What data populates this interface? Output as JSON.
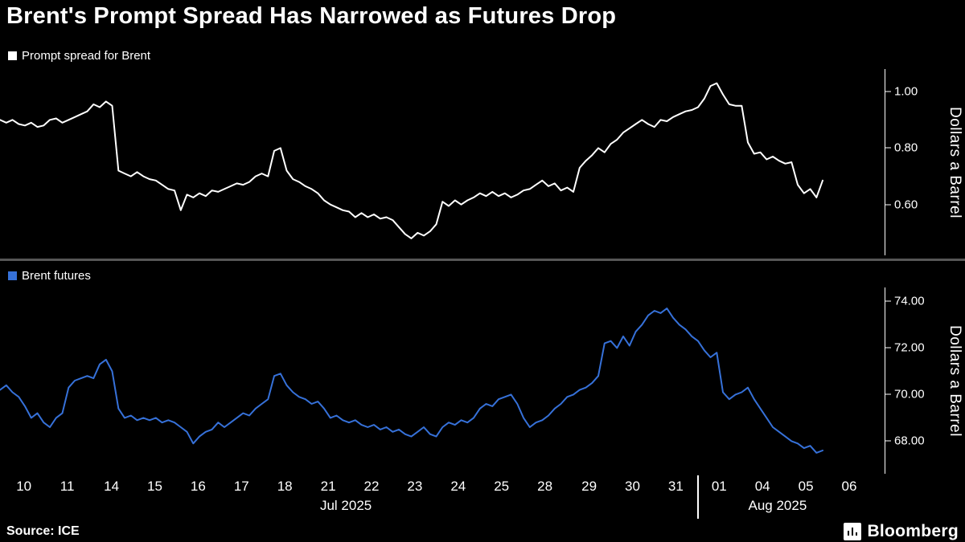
{
  "title": "Brent's Prompt Spread Has Narrowed as Futures Drop",
  "source": "Source: ICE",
  "brand": "Bloomberg",
  "colors": {
    "background": "#000000",
    "divider": "#565656",
    "prompt_spread_line": "#ffffff",
    "futures_line": "#3671d9",
    "axis": "#ffffff"
  },
  "chart_data": [
    {
      "type": "line",
      "name": "Prompt spread for Brent",
      "ylabel": "Dollars a Barrel",
      "color": "#ffffff",
      "ylim": [
        0.42,
        1.08
      ],
      "grid": false,
      "legend_position": "top-left",
      "yticks": [
        {
          "label": "1.00",
          "value": 1.0
        },
        {
          "label": "0.80",
          "value": 0.8
        },
        {
          "label": "0.60",
          "value": 0.6
        }
      ],
      "values": [
        0.9,
        0.89,
        0.9,
        0.885,
        0.88,
        0.89,
        0.875,
        0.88,
        0.9,
        0.905,
        0.89,
        0.9,
        0.91,
        0.92,
        0.93,
        0.955,
        0.945,
        0.965,
        0.95,
        0.72,
        0.71,
        0.7,
        0.715,
        0.7,
        0.69,
        0.685,
        0.67,
        0.655,
        0.65,
        0.58,
        0.635,
        0.625,
        0.64,
        0.63,
        0.65,
        0.645,
        0.655,
        0.665,
        0.675,
        0.67,
        0.68,
        0.7,
        0.71,
        0.7,
        0.79,
        0.8,
        0.72,
        0.69,
        0.68,
        0.665,
        0.655,
        0.64,
        0.615,
        0.6,
        0.59,
        0.58,
        0.575,
        0.555,
        0.57,
        0.555,
        0.565,
        0.55,
        0.555,
        0.545,
        0.52,
        0.495,
        0.48,
        0.5,
        0.49,
        0.505,
        0.53,
        0.61,
        0.595,
        0.615,
        0.6,
        0.615,
        0.625,
        0.64,
        0.63,
        0.645,
        0.63,
        0.64,
        0.625,
        0.635,
        0.65,
        0.655,
        0.67,
        0.685,
        0.665,
        0.675,
        0.65,
        0.66,
        0.645,
        0.73,
        0.755,
        0.775,
        0.8,
        0.785,
        0.815,
        0.83,
        0.855,
        0.87,
        0.885,
        0.9,
        0.885,
        0.875,
        0.9,
        0.895,
        0.91,
        0.92,
        0.93,
        0.935,
        0.945,
        0.975,
        1.02,
        1.03,
        0.99,
        0.955,
        0.95,
        0.95,
        0.82,
        0.78,
        0.785,
        0.76,
        0.77,
        0.755,
        0.745,
        0.75,
        0.67,
        0.64,
        0.655,
        0.625,
        0.685
      ]
    },
    {
      "type": "line",
      "name": "Brent futures",
      "ylabel": "Dollars a Barrel",
      "color": "#3671d9",
      "ylim": [
        66.6,
        74.6
      ],
      "grid": false,
      "legend_position": "top-left",
      "yticks": [
        {
          "label": "74.00",
          "value": 74.0
        },
        {
          "label": "72.00",
          "value": 72.0
        },
        {
          "label": "70.00",
          "value": 70.0
        },
        {
          "label": "68.00",
          "value": 68.0
        }
      ],
      "values": [
        70.2,
        70.4,
        70.1,
        69.9,
        69.5,
        69.0,
        69.2,
        68.8,
        68.6,
        69.0,
        69.2,
        70.3,
        70.6,
        70.7,
        70.8,
        70.7,
        71.3,
        71.5,
        71.0,
        69.4,
        69.0,
        69.1,
        68.9,
        69.0,
        68.9,
        69.0,
        68.8,
        68.9,
        68.8,
        68.6,
        68.4,
        67.9,
        68.2,
        68.4,
        68.5,
        68.8,
        68.6,
        68.8,
        69.0,
        69.2,
        69.1,
        69.4,
        69.6,
        69.8,
        70.8,
        70.9,
        70.4,
        70.1,
        69.9,
        69.8,
        69.6,
        69.7,
        69.4,
        69.0,
        69.1,
        68.9,
        68.8,
        68.9,
        68.7,
        68.6,
        68.7,
        68.5,
        68.6,
        68.4,
        68.5,
        68.3,
        68.2,
        68.4,
        68.6,
        68.3,
        68.2,
        68.6,
        68.8,
        68.7,
        68.9,
        68.8,
        69.0,
        69.4,
        69.6,
        69.5,
        69.8,
        69.9,
        70.0,
        69.6,
        69.0,
        68.6,
        68.8,
        68.9,
        69.1,
        69.4,
        69.6,
        69.9,
        70.0,
        70.2,
        70.3,
        70.5,
        70.8,
        72.2,
        72.3,
        72.0,
        72.5,
        72.1,
        72.7,
        73.0,
        73.4,
        73.6,
        73.5,
        73.7,
        73.3,
        73.0,
        72.8,
        72.5,
        72.3,
        71.9,
        71.6,
        71.8,
        70.1,
        69.8,
        70.0,
        70.1,
        70.3,
        69.8,
        69.4,
        69.0,
        68.6,
        68.4,
        68.2,
        68.0,
        67.9,
        67.7,
        67.8,
        67.5,
        67.6
      ]
    }
  ],
  "xaxis": {
    "data_extent": 0.93,
    "boundary_pos": 0.788,
    "ticks": [
      {
        "label": "10",
        "pos": 0.027
      },
      {
        "label": "11",
        "pos": 0.076
      },
      {
        "label": "14",
        "pos": 0.126
      },
      {
        "label": "15",
        "pos": 0.175
      },
      {
        "label": "16",
        "pos": 0.224
      },
      {
        "label": "17",
        "pos": 0.273
      },
      {
        "label": "18",
        "pos": 0.322
      },
      {
        "label": "21",
        "pos": 0.371
      },
      {
        "label": "22",
        "pos": 0.42
      },
      {
        "label": "23",
        "pos": 0.469
      },
      {
        "label": "24",
        "pos": 0.518
      },
      {
        "label": "25",
        "pos": 0.567
      },
      {
        "label": "28",
        "pos": 0.616
      },
      {
        "label": "29",
        "pos": 0.666
      },
      {
        "label": "30",
        "pos": 0.715
      },
      {
        "label": "31",
        "pos": 0.764
      },
      {
        "label": "01",
        "pos": 0.813
      },
      {
        "label": "04",
        "pos": 0.862
      },
      {
        "label": "05",
        "pos": 0.911
      },
      {
        "label": "06",
        "pos": 0.96
      }
    ],
    "months": [
      {
        "label": "Jul 2025",
        "pos": 0.391
      },
      {
        "label": "Aug 2025",
        "pos": 0.879
      }
    ]
  }
}
